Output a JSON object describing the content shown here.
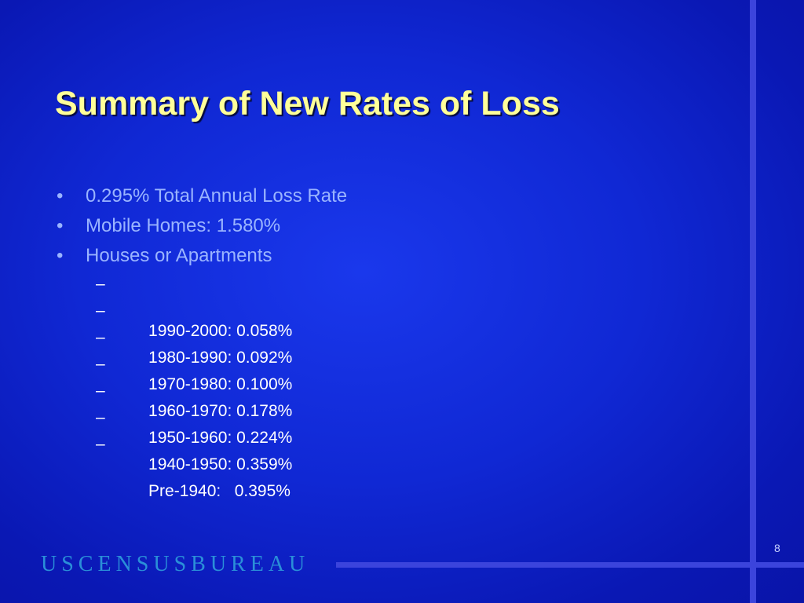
{
  "slide": {
    "title": "Summary of New Rates of Loss",
    "bullet_glyph": "•",
    "dash_glyph": "–",
    "bullets": [
      "0.295% Total Annual Loss Rate",
      "Mobile Homes: 1.580%",
      "Houses or Apartments"
    ],
    "sub_bullets": [
      "1990-2000: 0.058%",
      "1980-1990: 0.092%",
      "1970-1980: 0.100%",
      "1960-1970: 0.178%",
      "1950-1960: 0.224%",
      "1940-1950: 0.359%",
      "Pre-1940:   0.395%"
    ],
    "footer_brand": "USCENSUSBUREAU",
    "page_number": "8"
  },
  "colors": {
    "background": "#1028d4",
    "title": "#ffff99",
    "bullet_text": "#9ab4ff",
    "sub_bullet_text": "#ffffff",
    "brand": "#2a8fd8",
    "accent_lines": "#3b44dc"
  }
}
